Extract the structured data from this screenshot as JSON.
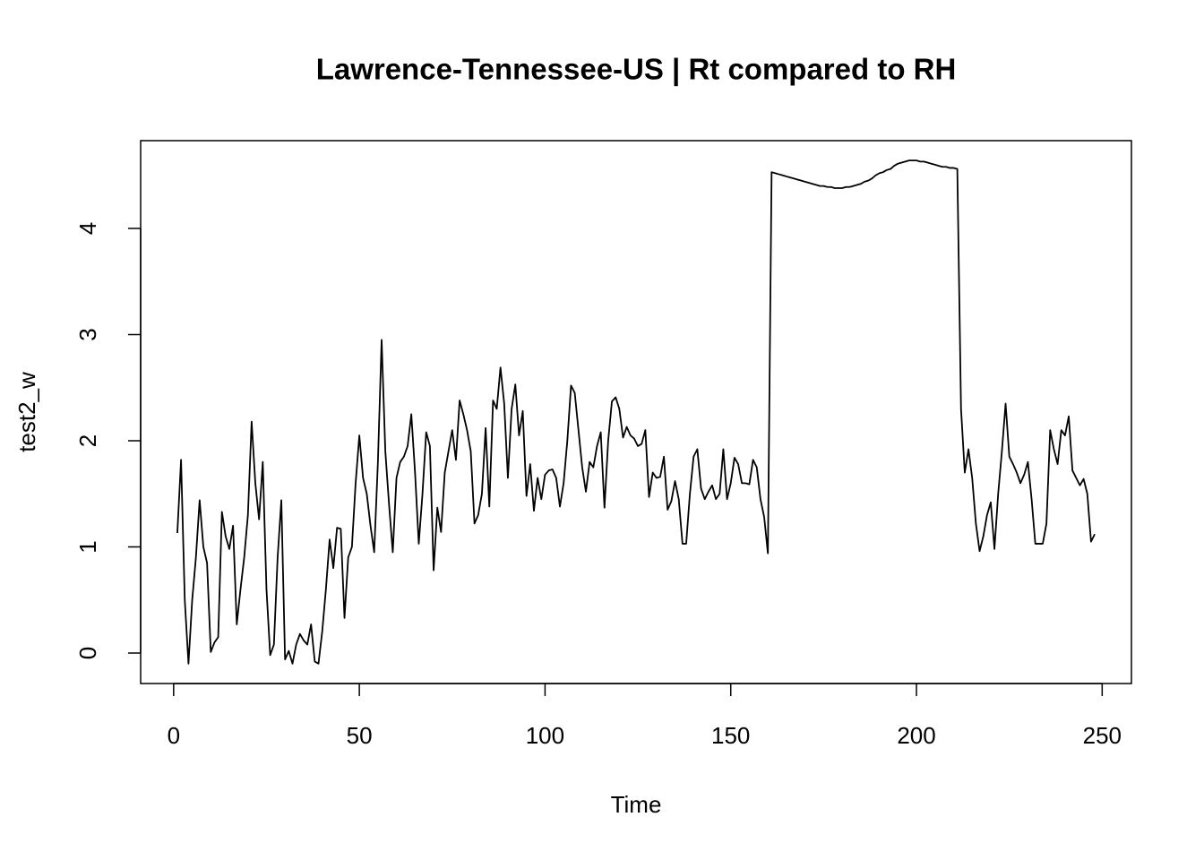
{
  "chart_data": {
    "type": "line",
    "title": "Lawrence-Tennessee-US | Rt compared to RH",
    "xlabel": "Time",
    "ylabel": "test2_w",
    "color": "#000000",
    "x": [
      1,
      2,
      3,
      4,
      5,
      6,
      7,
      8,
      9,
      10,
      11,
      12,
      13,
      14,
      15,
      16,
      17,
      18,
      19,
      20,
      21,
      22,
      23,
      24,
      25,
      26,
      27,
      28,
      29,
      30,
      31,
      32,
      33,
      34,
      35,
      36,
      37,
      38,
      39,
      40,
      41,
      42,
      43,
      44,
      45,
      46,
      47,
      48,
      49,
      50,
      51,
      52,
      53,
      54,
      55,
      56,
      57,
      58,
      59,
      60,
      61,
      62,
      63,
      64,
      65,
      66,
      67,
      68,
      69,
      70,
      71,
      72,
      73,
      74,
      75,
      76,
      77,
      78,
      79,
      80,
      81,
      82,
      83,
      84,
      85,
      86,
      87,
      88,
      89,
      90,
      91,
      92,
      93,
      94,
      95,
      96,
      97,
      98,
      99,
      100,
      101,
      102,
      103,
      104,
      105,
      106,
      107,
      108,
      109,
      110,
      111,
      112,
      113,
      114,
      115,
      116,
      117,
      118,
      119,
      120,
      121,
      122,
      123,
      124,
      125,
      126,
      127,
      128,
      129,
      130,
      131,
      132,
      133,
      134,
      135,
      136,
      137,
      138,
      139,
      140,
      141,
      142,
      143,
      144,
      145,
      146,
      147,
      148,
      149,
      150,
      151,
      152,
      153,
      154,
      155,
      156,
      157,
      158,
      159,
      160,
      161,
      162,
      163,
      164,
      165,
      166,
      167,
      168,
      169,
      170,
      171,
      172,
      173,
      174,
      175,
      176,
      177,
      178,
      179,
      180,
      181,
      182,
      183,
      184,
      185,
      186,
      187,
      188,
      189,
      190,
      191,
      192,
      193,
      194,
      195,
      196,
      197,
      198,
      199,
      200,
      201,
      202,
      203,
      204,
      205,
      206,
      207,
      208,
      209,
      210,
      211,
      212,
      213,
      214,
      215,
      216,
      217,
      218,
      219,
      220,
      221,
      222,
      223,
      224,
      225,
      226,
      227,
      228,
      229,
      230,
      231,
      232,
      233,
      234,
      235,
      236,
      237,
      238,
      239,
      240,
      241,
      242,
      243,
      244,
      245,
      246,
      247,
      248
    ],
    "values": [
      1.13,
      1.82,
      0.5,
      -0.1,
      0.5,
      0.9,
      1.44,
      1.0,
      0.85,
      0.01,
      0.1,
      0.15,
      1.33,
      1.1,
      0.98,
      1.2,
      0.27,
      0.6,
      0.9,
      1.3,
      2.18,
      1.6,
      1.26,
      1.8,
      0.6,
      -0.02,
      0.08,
      0.9,
      1.44,
      -0.06,
      0.02,
      -0.1,
      0.08,
      0.18,
      0.12,
      0.08,
      0.27,
      -0.08,
      -0.1,
      0.2,
      0.6,
      1.07,
      0.8,
      1.18,
      1.17,
      0.33,
      0.9,
      1.0,
      1.6,
      2.05,
      1.65,
      1.5,
      1.2,
      0.95,
      1.8,
      2.95,
      1.9,
      1.4,
      0.95,
      1.65,
      1.8,
      1.85,
      1.95,
      2.25,
      1.7,
      1.03,
      1.5,
      2.08,
      1.95,
      0.78,
      1.37,
      1.14,
      1.7,
      1.9,
      2.1,
      1.82,
      2.38,
      2.25,
      2.1,
      1.9,
      1.22,
      1.3,
      1.5,
      2.12,
      1.38,
      2.38,
      2.3,
      2.69,
      2.35,
      1.65,
      2.3,
      2.53,
      2.05,
      2.28,
      1.48,
      1.78,
      1.34,
      1.65,
      1.45,
      1.68,
      1.72,
      1.73,
      1.65,
      1.38,
      1.6,
      2.0,
      2.52,
      2.45,
      2.1,
      1.75,
      1.52,
      1.8,
      1.75,
      1.95,
      2.08,
      1.37,
      2.0,
      2.37,
      2.41,
      2.3,
      2.03,
      2.13,
      2.05,
      2.02,
      1.95,
      1.97,
      2.1,
      1.47,
      1.7,
      1.65,
      1.66,
      1.85,
      1.35,
      1.43,
      1.62,
      1.45,
      1.03,
      1.03,
      1.5,
      1.85,
      1.92,
      1.55,
      1.45,
      1.52,
      1.58,
      1.45,
      1.5,
      1.92,
      1.45,
      1.6,
      1.84,
      1.78,
      1.6,
      1.6,
      1.59,
      1.82,
      1.75,
      1.45,
      1.28,
      0.94,
      4.53,
      4.52,
      4.51,
      4.5,
      4.49,
      4.48,
      4.47,
      4.46,
      4.45,
      4.44,
      4.43,
      4.42,
      4.41,
      4.4,
      4.4,
      4.39,
      4.39,
      4.38,
      4.38,
      4.38,
      4.39,
      4.39,
      4.4,
      4.41,
      4.42,
      4.44,
      4.45,
      4.47,
      4.5,
      4.52,
      4.53,
      4.55,
      4.56,
      4.59,
      4.61,
      4.62,
      4.63,
      4.64,
      4.64,
      4.64,
      4.63,
      4.63,
      4.62,
      4.61,
      4.6,
      4.59,
      4.58,
      4.58,
      4.57,
      4.57,
      4.56,
      2.3,
      1.7,
      1.92,
      1.65,
      1.22,
      0.96,
      1.1,
      1.3,
      1.42,
      0.98,
      1.5,
      1.9,
      2.35,
      1.85,
      1.78,
      1.7,
      1.6,
      1.68,
      1.8,
      1.45,
      1.03,
      1.03,
      1.03,
      1.22,
      2.1,
      1.92,
      1.78,
      2.1,
      2.05,
      2.23,
      1.72,
      1.65,
      1.58,
      1.64,
      1.5,
      1.05,
      1.12
    ],
    "xlim": [
      -8.88,
      257.88
    ],
    "ylim": [
      -0.287,
      4.827
    ],
    "xticks": [
      0,
      50,
      100,
      150,
      200,
      250
    ],
    "yticks": [
      0,
      1,
      2,
      3,
      4
    ]
  }
}
